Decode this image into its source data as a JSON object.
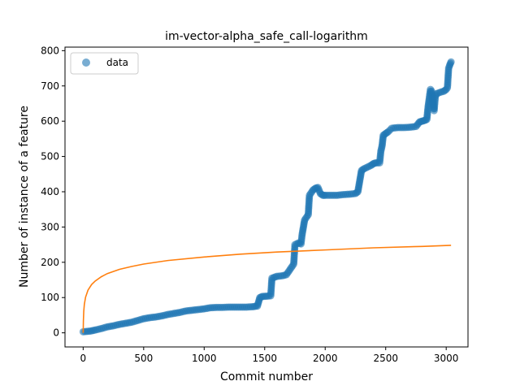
{
  "chart_data": {
    "type": "scatter",
    "title": "im-vector-alpha_safe_call-logarithm",
    "xlabel": "Commit number",
    "ylabel": "Number of instance of a feature",
    "xlim": [
      -150,
      3180
    ],
    "ylim": [
      -40,
      810
    ],
    "xticks": [
      0,
      500,
      1000,
      1500,
      2000,
      2500,
      3000
    ],
    "yticks": [
      0,
      100,
      200,
      300,
      400,
      500,
      600,
      700,
      800
    ],
    "xtick_labels": [
      "0",
      "500",
      "1000",
      "1500",
      "2000",
      "2500",
      "3000"
    ],
    "ytick_labels": [
      "0",
      "100",
      "200",
      "300",
      "400",
      "500",
      "600",
      "700",
      "800"
    ],
    "grid": false,
    "legend": {
      "position": "top-left",
      "entries": [
        "data"
      ]
    },
    "series": [
      {
        "name": "data",
        "kind": "scatter",
        "color": "#1f77b4",
        "points": [
          [
            0,
            3
          ],
          [
            30,
            4
          ],
          [
            60,
            5
          ],
          [
            100,
            8
          ],
          [
            150,
            12
          ],
          [
            200,
            17
          ],
          [
            250,
            20
          ],
          [
            300,
            24
          ],
          [
            350,
            27
          ],
          [
            400,
            30
          ],
          [
            450,
            35
          ],
          [
            500,
            40
          ],
          [
            550,
            43
          ],
          [
            600,
            45
          ],
          [
            650,
            48
          ],
          [
            700,
            52
          ],
          [
            750,
            55
          ],
          [
            800,
            58
          ],
          [
            850,
            62
          ],
          [
            900,
            64
          ],
          [
            950,
            66
          ],
          [
            1000,
            68
          ],
          [
            1050,
            71
          ],
          [
            1100,
            72
          ],
          [
            1150,
            72
          ],
          [
            1200,
            73
          ],
          [
            1250,
            73
          ],
          [
            1300,
            73
          ],
          [
            1350,
            73
          ],
          [
            1400,
            74
          ],
          [
            1440,
            76
          ],
          [
            1460,
            100
          ],
          [
            1480,
            103
          ],
          [
            1520,
            104
          ],
          [
            1550,
            105
          ],
          [
            1560,
            155
          ],
          [
            1600,
            160
          ],
          [
            1650,
            162
          ],
          [
            1680,
            165
          ],
          [
            1700,
            175
          ],
          [
            1720,
            185
          ],
          [
            1740,
            195
          ],
          [
            1750,
            250
          ],
          [
            1780,
            255
          ],
          [
            1800,
            252
          ],
          [
            1810,
            280
          ],
          [
            1820,
            300
          ],
          [
            1830,
            320
          ],
          [
            1850,
            330
          ],
          [
            1860,
            335
          ],
          [
            1870,
            390
          ],
          [
            1880,
            395
          ],
          [
            1900,
            405
          ],
          [
            1920,
            410
          ],
          [
            1940,
            412
          ],
          [
            1960,
            395
          ],
          [
            1980,
            390
          ],
          [
            2000,
            390
          ],
          [
            2050,
            390
          ],
          [
            2100,
            390
          ],
          [
            2150,
            392
          ],
          [
            2200,
            393
          ],
          [
            2250,
            395
          ],
          [
            2270,
            400
          ],
          [
            2280,
            420
          ],
          [
            2290,
            440
          ],
          [
            2300,
            460
          ],
          [
            2320,
            465
          ],
          [
            2350,
            470
          ],
          [
            2380,
            475
          ],
          [
            2400,
            480
          ],
          [
            2420,
            482
          ],
          [
            2450,
            482
          ],
          [
            2460,
            515
          ],
          [
            2470,
            530
          ],
          [
            2480,
            560
          ],
          [
            2500,
            565
          ],
          [
            2520,
            570
          ],
          [
            2550,
            580
          ],
          [
            2600,
            582
          ],
          [
            2650,
            582
          ],
          [
            2700,
            583
          ],
          [
            2750,
            585
          ],
          [
            2780,
            598
          ],
          [
            2800,
            600
          ],
          [
            2820,
            602
          ],
          [
            2840,
            605
          ],
          [
            2850,
            640
          ],
          [
            2860,
            665
          ],
          [
            2870,
            690
          ],
          [
            2880,
            685
          ],
          [
            2890,
            655
          ],
          [
            2900,
            630
          ],
          [
            2910,
            670
          ],
          [
            2920,
            678
          ],
          [
            2950,
            682
          ],
          [
            2980,
            685
          ],
          [
            3000,
            690
          ],
          [
            3010,
            695
          ],
          [
            3020,
            750
          ],
          [
            3030,
            760
          ],
          [
            3040,
            768
          ]
        ]
      },
      {
        "name": "",
        "kind": "line",
        "color": "#ff7f0e",
        "x": [
          0,
          1,
          2,
          5,
          10,
          20,
          40,
          70,
          100,
          150,
          200,
          300,
          400,
          500,
          700,
          1000,
          1300,
          1600,
          2000,
          2400,
          2800,
          3040
        ],
        "y": [
          0,
          13,
          34,
          61,
          81,
          101,
          121,
          137,
          147,
          159,
          168,
          180,
          188,
          195,
          205,
          215,
          223,
          229,
          235,
          241,
          245,
          248
        ]
      }
    ]
  }
}
